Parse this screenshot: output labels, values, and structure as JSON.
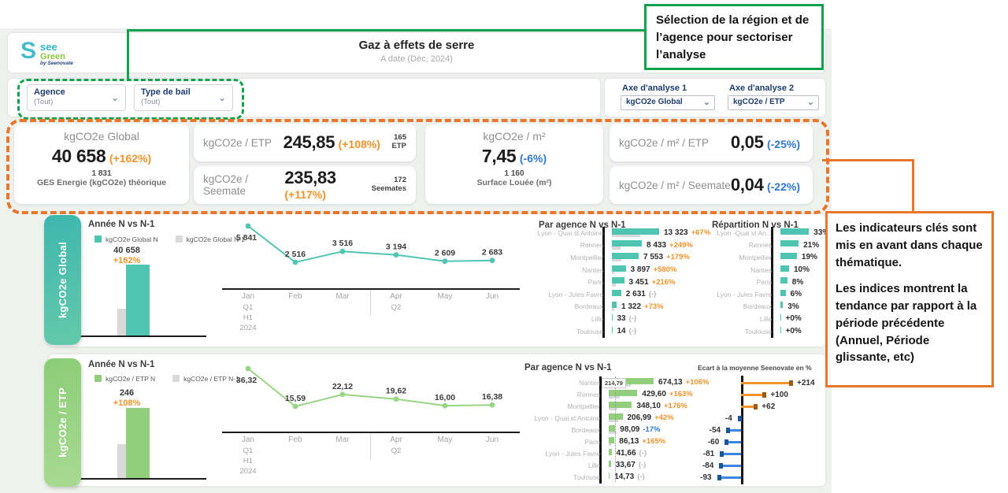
{
  "header": {
    "logo": {
      "s": "S",
      "see": "see",
      "green": "Green",
      "by": "by Seenovate"
    },
    "title": "Gaz à effets de serre",
    "subtitle": "A date (Déc, 2024)"
  },
  "annotations": {
    "green": "Sélection de la région et de l’agence pour sectoriser l’analyse",
    "orange_p1": "Les indicateurs clés sont mis en avant dans chaque thématique.",
    "orange_p2": "Les indices montrent la tendance par rapport à la période précédente (Annuel, Période glissante, etc)"
  },
  "filters": {
    "agence": {
      "label": "Agence",
      "value": "(Tout)"
    },
    "type_bail": {
      "label": "Type de bail",
      "value": "(Tout)"
    },
    "axe1": {
      "label": "Axe d'analyse 1",
      "value": "kgCO2e Global"
    },
    "axe2": {
      "label": "Axe d'analyse 2",
      "value": "kgCO2e / ETP"
    }
  },
  "kpis": {
    "global": {
      "title": "kgCO2e Global",
      "value": "40 658",
      "delta": "(+162%)",
      "sub_value": "1 831",
      "sub_label": "GES Energie (kgCO2e) théorique"
    },
    "etp": {
      "label": "kgCO2e / ETP",
      "value": "245,85",
      "delta": "(+108%)",
      "side_value": "165",
      "side_label": "ETP"
    },
    "seemate": {
      "label": "kgCO2e / Seemate",
      "value": "235,83",
      "delta": "(+117%)",
      "side_value": "172",
      "side_label": "Seemates"
    },
    "m2": {
      "title": "kgCO2e / m²",
      "value": "7,45",
      "delta": "(-6%)",
      "sub_value": "1 160",
      "sub_label": "Surface Louée (m²)"
    },
    "m2_etp": {
      "label": "kgCO2e / m² / ETP",
      "value": "0,05",
      "delta": "(-25%)"
    },
    "m2_seemate": {
      "label": "kgCO2e / m² / Seemate",
      "value": "0,04",
      "delta": "(-22%)"
    }
  },
  "months": [
    "Jan",
    "Feb",
    "Mar",
    "Apr",
    "May",
    "Jun"
  ],
  "month_subs": [
    [
      "Q1",
      "H1",
      "2024"
    ],
    [],
    [],
    [
      "Q2"
    ],
    [],
    []
  ],
  "sections": [
    {
      "tab": "kgCO2e Global",
      "annee_title": "Année N vs N-1",
      "legend": [
        {
          "label": "kgCO2e Global N"
        },
        {
          "label": "kgCO2e Global N-1"
        }
      ],
      "annee": {
        "type": "bar",
        "value_label": "40 658",
        "delta": "+162%",
        "n": 40658,
        "n1": 15518
      },
      "trend": {
        "type": "line",
        "values": [
          5841,
          2516,
          3516,
          3194,
          2609,
          2683
        ],
        "labels": [
          "5 841",
          "2 516",
          "3 516",
          "3 194",
          "2 609",
          "2 683"
        ]
      },
      "agence_title": "Par agence N vs N-1",
      "agence": {
        "type": "bar-h",
        "rows": [
          {
            "label": "Lyon - Quai st Antoine",
            "value": "13 323",
            "delta": "+67%",
            "dc": "pos",
            "n": 13323,
            "n1": 7978
          },
          {
            "label": "Rennes",
            "value": "8 433",
            "delta": "+249%",
            "dc": "pos",
            "n": 8433,
            "n1": 2416
          },
          {
            "label": "Montpellier",
            "value": "7 553",
            "delta": "+179%",
            "dc": "pos",
            "n": 7553,
            "n1": 2707
          },
          {
            "label": "Nantes",
            "value": "3 897",
            "delta": "+580%",
            "dc": "pos",
            "n": 3897,
            "n1": 573
          },
          {
            "label": "Paris",
            "value": "3 451",
            "delta": "+216%",
            "dc": "pos",
            "n": 3451,
            "n1": 1092
          },
          {
            "label": "Lyon - Jules Favre",
            "value": "2 631",
            "delta": "(-)",
            "dc": "na",
            "n": 2631,
            "n1": 0
          },
          {
            "label": "Bordeaux",
            "value": "1 322",
            "delta": "+73%",
            "dc": "pos",
            "n": 1322,
            "n1": 764
          },
          {
            "label": "Lille",
            "value": "33",
            "delta": "(-)",
            "dc": "na",
            "n": 33,
            "n1": 0
          },
          {
            "label": "Toulouse",
            "value": "14",
            "delta": "(-)",
            "dc": "na",
            "n": 14,
            "n1": 0
          }
        ]
      },
      "repartition_title": "Répartition N vs N-1",
      "repartition": {
        "type": "bar-h",
        "rows": [
          {
            "label": "Lyon -Quai st An...",
            "value": "33%",
            "n": 33
          },
          {
            "label": "Rennes",
            "value": "21%",
            "n": 21
          },
          {
            "label": "Montpellier",
            "value": "19%",
            "n": 19
          },
          {
            "label": "Nantes",
            "value": "10%",
            "n": 10
          },
          {
            "label": "Paris",
            "value": "8%",
            "n": 8
          },
          {
            "label": "Lyon - Jules Favre",
            "value": "6%",
            "n": 6
          },
          {
            "label": "Bordeaux",
            "value": "3%",
            "n": 3
          },
          {
            "label": "Lille",
            "value": "+0%",
            "n": 0
          },
          {
            "label": "Toulouse",
            "value": "+0%",
            "n": 0
          }
        ]
      }
    },
    {
      "tab": "kgCO2e / ETP",
      "annee_title": "Année N vs N-1",
      "legend": [
        {
          "label": "kgCO2e / ETP N"
        },
        {
          "label": "kgCO2e / ETP N-1"
        }
      ],
      "annee": {
        "type": "bar",
        "value_label": "246",
        "delta": "+108%",
        "n": 246,
        "n1": 118
      },
      "trend": {
        "type": "line",
        "values": [
          36.32,
          15.59,
          22.12,
          19.62,
          16.0,
          16.38
        ],
        "labels": [
          "36,32",
          "15,59",
          "22,12",
          "19,62",
          "16,00",
          "16,38"
        ]
      },
      "agence_title": "Par agence N vs N-1",
      "ref_label": "214,79",
      "ref_value": 214.79,
      "agence": {
        "type": "bar-h",
        "rows": [
          {
            "label": "Nantes",
            "value": "674,13",
            "delta": "+106%",
            "dc": "pos",
            "n": 674.13,
            "n1": 327
          },
          {
            "label": "Rennes",
            "value": "429,60",
            "delta": "+163%",
            "dc": "pos",
            "n": 429.6,
            "n1": 163
          },
          {
            "label": "Montpellier",
            "value": "348,10",
            "delta": "+176%",
            "dc": "pos",
            "n": 348.1,
            "n1": 126
          },
          {
            "label": "Lyon - Quai st Antoine",
            "value": "206,99",
            "delta": "+42%",
            "dc": "pos",
            "n": 206.99,
            "n1": 146
          },
          {
            "label": "Bordeaux",
            "value": "98,09",
            "delta": "-17%",
            "dc": "neg",
            "n": 98.09,
            "n1": 118
          },
          {
            "label": "Paris",
            "value": "86,13",
            "delta": "+165%",
            "dc": "pos",
            "n": 86.13,
            "n1": 33
          },
          {
            "label": "Lyon - Jules Favre",
            "value": "41,66",
            "delta": "(-)",
            "dc": "na",
            "n": 41.66,
            "n1": 0
          },
          {
            "label": "Lille",
            "value": "33,67",
            "delta": "(-)",
            "dc": "na",
            "n": 33.67,
            "n1": 0
          },
          {
            "label": "Toulouse",
            "value": "14,73",
            "delta": "(-)",
            "dc": "na",
            "n": 14.73,
            "n1": 0
          }
        ]
      },
      "ecart_title": "Ecart à la moyenne Seenovate en %",
      "ecart": {
        "type": "bar-diverging",
        "rows": [
          {
            "label": "+214",
            "v": 214
          },
          {
            "label": "+100",
            "v": 100
          },
          {
            "label": "+62",
            "v": 62
          },
          {
            "label": "-4",
            "v": -4
          },
          {
            "label": "-54",
            "v": -54
          },
          {
            "label": "-60",
            "v": -60
          },
          {
            "label": "-81",
            "v": -81
          },
          {
            "label": "-84",
            "v": -84
          },
          {
            "label": "-93",
            "v": -93
          }
        ]
      }
    }
  ]
}
